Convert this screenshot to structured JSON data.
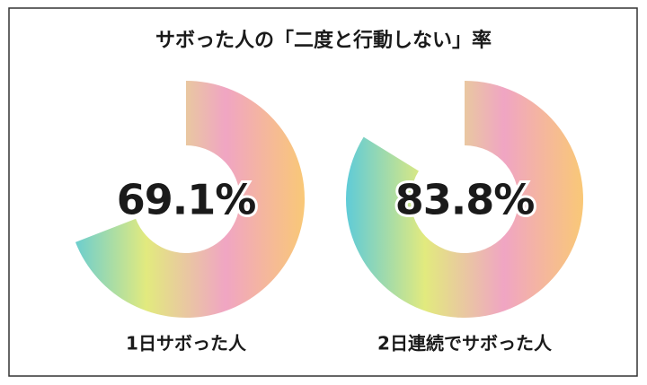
{
  "title": "サボった人の「二度と行動しない」率",
  "chart_data": [
    {
      "type": "donut",
      "categories": [
        "1日サボった人"
      ],
      "values": [
        69.1
      ],
      "value_labels": [
        "69.1%"
      ],
      "ylim": [
        0,
        100
      ],
      "colors": [
        "#5fcbd8",
        "#e2ea7e",
        "#f0a5c3",
        "#f9c877"
      ]
    },
    {
      "type": "donut",
      "categories": [
        "2日連続でサボった人"
      ],
      "values": [
        83.8
      ],
      "value_labels": [
        "83.8%"
      ],
      "ylim": [
        0,
        100
      ],
      "colors": [
        "#5fcbd8",
        "#e2ea7e",
        "#f0a5c3",
        "#f9c877"
      ]
    }
  ]
}
